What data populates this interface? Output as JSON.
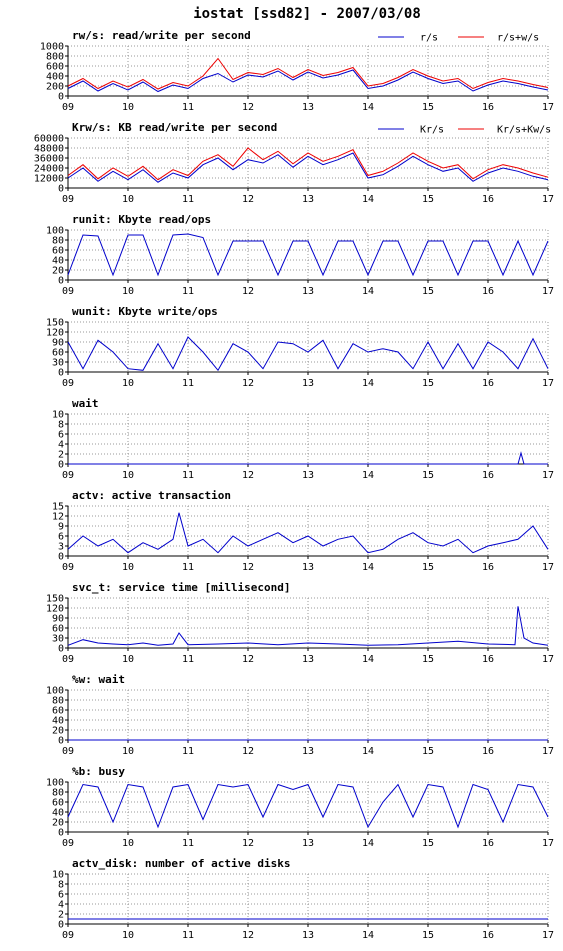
{
  "title": "iostat [ssd82] - 2007/03/08",
  "colors": {
    "primary": "#0000cc",
    "secondary": "#ee0000",
    "grid": "#999999",
    "axis": "#000000"
  },
  "x_ticks": [
    "09",
    "10",
    "11",
    "12",
    "13",
    "14",
    "15",
    "16",
    "17"
  ],
  "chart_data": [
    {
      "type": "line",
      "title": "rw/s: read/write per second",
      "yticks": [
        "1000",
        "800",
        "600",
        "400",
        "200",
        "0"
      ],
      "ylim": [
        0,
        1000
      ],
      "xlim": [
        9,
        17
      ],
      "legend": [
        "r/s",
        "r/s+w/s"
      ],
      "series": [
        {
          "name": "r/s",
          "x": [
            9.0,
            9.25,
            9.5,
            9.75,
            10.0,
            10.25,
            10.5,
            10.75,
            11.0,
            11.25,
            11.5,
            11.75,
            12.0,
            12.25,
            12.5,
            12.75,
            13.0,
            13.25,
            13.5,
            13.75,
            14.0,
            14.25,
            14.5,
            14.75,
            15.0,
            15.25,
            15.5,
            15.75,
            16.0,
            16.25,
            16.5,
            16.75,
            17.0
          ],
          "y": [
            150,
            300,
            100,
            250,
            120,
            280,
            90,
            220,
            150,
            350,
            450,
            280,
            420,
            380,
            500,
            320,
            480,
            360,
            420,
            520,
            150,
            200,
            320,
            480,
            350,
            250,
            300,
            100,
            220,
            300,
            250,
            180,
            120
          ]
        },
        {
          "name": "r/s+w/s",
          "x": [
            9.0,
            9.25,
            9.5,
            9.75,
            10.0,
            10.25,
            10.5,
            10.75,
            11.0,
            11.25,
            11.5,
            11.75,
            12.0,
            12.25,
            12.5,
            12.75,
            13.0,
            13.25,
            13.5,
            13.75,
            14.0,
            14.25,
            14.5,
            14.75,
            15.0,
            15.25,
            15.5,
            15.75,
            16.0,
            16.25,
            16.5,
            16.75,
            17.0
          ],
          "y": [
            200,
            350,
            150,
            300,
            180,
            330,
            140,
            270,
            200,
            400,
            750,
            330,
            470,
            430,
            550,
            370,
            530,
            410,
            470,
            570,
            200,
            250,
            370,
            530,
            400,
            300,
            350,
            150,
            270,
            350,
            300,
            230,
            170
          ]
        }
      ]
    },
    {
      "type": "line",
      "title": "Krw/s: KB read/write per second",
      "yticks": [
        "60000",
        "48000",
        "36000",
        "24000",
        "12000",
        "0"
      ],
      "ylim": [
        0,
        60000
      ],
      "xlim": [
        9,
        17
      ],
      "legend": [
        "Kr/s",
        "Kr/s+Kw/s"
      ],
      "series": [
        {
          "name": "Kr/s",
          "x": [
            9.0,
            9.25,
            9.5,
            9.75,
            10.0,
            10.25,
            10.5,
            10.75,
            11.0,
            11.25,
            11.5,
            11.75,
            12.0,
            12.25,
            12.5,
            12.75,
            13.0,
            13.25,
            13.5,
            13.75,
            14.0,
            14.25,
            14.5,
            14.75,
            15.0,
            15.25,
            15.5,
            15.75,
            16.0,
            16.25,
            16.5,
            16.75,
            17.0
          ],
          "y": [
            12000,
            24000,
            8000,
            20000,
            10000,
            22000,
            7000,
            18000,
            12000,
            28000,
            36000,
            22000,
            34000,
            30000,
            40000,
            25000,
            38000,
            28000,
            34000,
            42000,
            12000,
            16000,
            26000,
            38000,
            28000,
            20000,
            24000,
            8000,
            18000,
            24000,
            20000,
            14000,
            10000
          ]
        },
        {
          "name": "Kr/s+Kw/s",
          "x": [
            9.0,
            9.25,
            9.5,
            9.75,
            10.0,
            10.25,
            10.5,
            10.75,
            11.0,
            11.25,
            11.5,
            11.75,
            12.0,
            12.25,
            12.5,
            12.75,
            13.0,
            13.25,
            13.5,
            13.75,
            14.0,
            14.25,
            14.5,
            14.75,
            15.0,
            15.25,
            15.5,
            15.75,
            16.0,
            16.25,
            16.5,
            16.75,
            17.0
          ],
          "y": [
            15000,
            28000,
            11000,
            24000,
            14000,
            26000,
            10000,
            22000,
            15000,
            32000,
            40000,
            26000,
            48000,
            34000,
            44000,
            29000,
            42000,
            32000,
            38000,
            46000,
            15000,
            20000,
            30000,
            42000,
            32000,
            24000,
            28000,
            11000,
            22000,
            28000,
            24000,
            18000,
            13000
          ]
        }
      ]
    },
    {
      "type": "line",
      "title": "runit: Kbyte read/ops",
      "yticks": [
        "100",
        "80",
        "60",
        "40",
        "20",
        "0"
      ],
      "ylim": [
        0,
        100
      ],
      "xlim": [
        9,
        17
      ],
      "series": [
        {
          "x": [
            9.0,
            9.25,
            9.5,
            9.75,
            10.0,
            10.25,
            10.5,
            10.75,
            11.0,
            11.25,
            11.5,
            11.75,
            12.0,
            12.25,
            12.5,
            12.75,
            13.0,
            13.25,
            13.5,
            13.75,
            14.0,
            14.25,
            14.5,
            14.75,
            15.0,
            15.25,
            15.5,
            15.75,
            16.0,
            16.25,
            16.5,
            16.75,
            17.0
          ],
          "y": [
            10,
            90,
            88,
            10,
            90,
            90,
            10,
            90,
            92,
            85,
            10,
            78,
            78,
            78,
            10,
            78,
            78,
            10,
            78,
            78,
            10,
            78,
            78,
            10,
            78,
            78,
            10,
            78,
            78,
            10,
            78,
            10,
            78
          ]
        }
      ]
    },
    {
      "type": "line",
      "title": "wunit: Kbyte write/ops",
      "yticks": [
        "150",
        "120",
        "90",
        "60",
        "30",
        "0"
      ],
      "ylim": [
        0,
        150
      ],
      "xlim": [
        9,
        17
      ],
      "series": [
        {
          "x": [
            9.0,
            9.25,
            9.5,
            9.75,
            10.0,
            10.25,
            10.5,
            10.75,
            11.0,
            11.25,
            11.5,
            11.75,
            12.0,
            12.25,
            12.5,
            12.75,
            13.0,
            13.25,
            13.5,
            13.75,
            14.0,
            14.25,
            14.5,
            14.75,
            15.0,
            15.25,
            15.5,
            15.75,
            16.0,
            16.25,
            16.5,
            16.75,
            17.0
          ],
          "y": [
            90,
            10,
            95,
            60,
            10,
            5,
            85,
            10,
            105,
            60,
            5,
            85,
            60,
            10,
            90,
            85,
            60,
            95,
            10,
            85,
            60,
            70,
            60,
            10,
            90,
            10,
            85,
            10,
            90,
            60,
            10,
            100,
            10
          ]
        }
      ]
    },
    {
      "type": "line",
      "title": "wait",
      "yticks": [
        "10",
        "8",
        "6",
        "4",
        "2",
        "0"
      ],
      "ylim": [
        0,
        10
      ],
      "xlim": [
        9,
        17
      ],
      "series": [
        {
          "x": [
            9.0,
            10.0,
            11.0,
            12.0,
            13.0,
            14.0,
            15.0,
            16.0,
            16.5,
            16.55,
            16.6,
            17.0
          ],
          "y": [
            0,
            0,
            0,
            0,
            0,
            0,
            0,
            0,
            0,
            2.2,
            0,
            0
          ]
        }
      ]
    },
    {
      "type": "line",
      "title": "actv: active transaction",
      "yticks": [
        "15",
        "12",
        "9",
        "6",
        "3",
        "0"
      ],
      "ylim": [
        0,
        15
      ],
      "xlim": [
        9,
        17
      ],
      "series": [
        {
          "x": [
            9.0,
            9.25,
            9.5,
            9.75,
            10.0,
            10.25,
            10.5,
            10.75,
            10.85,
            11.0,
            11.25,
            11.5,
            11.75,
            12.0,
            12.25,
            12.5,
            12.75,
            13.0,
            13.25,
            13.5,
            13.75,
            14.0,
            14.25,
            14.5,
            14.75,
            15.0,
            15.25,
            15.5,
            15.75,
            16.0,
            16.25,
            16.5,
            16.75,
            17.0
          ],
          "y": [
            2,
            6,
            3,
            5,
            1,
            4,
            2,
            5,
            13,
            3,
            5,
            1,
            6,
            3,
            5,
            7,
            4,
            6,
            3,
            5,
            6,
            1,
            2,
            5,
            7,
            4,
            3,
            5,
            1,
            3,
            4,
            5,
            9,
            2
          ]
        }
      ]
    },
    {
      "type": "line",
      "title": "svc_t: service time [millisecond]",
      "yticks": [
        "150",
        "120",
        "90",
        "60",
        "30",
        "0"
      ],
      "ylim": [
        0,
        150
      ],
      "xlim": [
        9,
        17
      ],
      "series": [
        {
          "x": [
            9.0,
            9.25,
            9.5,
            9.75,
            10.0,
            10.25,
            10.5,
            10.75,
            10.85,
            11.0,
            11.5,
            12.0,
            12.5,
            13.0,
            13.5,
            14.0,
            14.5,
            15.0,
            15.5,
            16.0,
            16.45,
            16.5,
            16.6,
            16.75,
            17.0
          ],
          "y": [
            8,
            25,
            15,
            12,
            10,
            15,
            8,
            12,
            45,
            10,
            12,
            15,
            10,
            15,
            12,
            8,
            10,
            15,
            20,
            12,
            10,
            125,
            30,
            15,
            8
          ]
        }
      ]
    },
    {
      "type": "line",
      "title": "%w: wait",
      "yticks": [
        "100",
        "80",
        "60",
        "40",
        "20",
        "0"
      ],
      "ylim": [
        0,
        100
      ],
      "xlim": [
        9,
        17
      ],
      "series": [
        {
          "x": [
            9.0,
            17.0
          ],
          "y": [
            0,
            0
          ]
        }
      ]
    },
    {
      "type": "line",
      "title": "%b: busy",
      "yticks": [
        "100",
        "80",
        "60",
        "40",
        "20",
        "0"
      ],
      "ylim": [
        0,
        100
      ],
      "xlim": [
        9,
        17
      ],
      "series": [
        {
          "x": [
            9.0,
            9.25,
            9.5,
            9.75,
            10.0,
            10.25,
            10.5,
            10.75,
            11.0,
            11.25,
            11.5,
            11.75,
            12.0,
            12.25,
            12.5,
            12.75,
            13.0,
            13.25,
            13.5,
            13.75,
            14.0,
            14.25,
            14.5,
            14.75,
            15.0,
            15.25,
            15.5,
            15.75,
            16.0,
            16.25,
            16.5,
            16.75,
            17.0
          ],
          "y": [
            30,
            95,
            90,
            20,
            95,
            90,
            10,
            90,
            95,
            25,
            95,
            90,
            95,
            30,
            95,
            85,
            95,
            30,
            95,
            90,
            10,
            60,
            95,
            30,
            95,
            90,
            10,
            95,
            85,
            20,
            95,
            90,
            30
          ]
        }
      ]
    },
    {
      "type": "line",
      "title": "actv_disk: number of active disks",
      "yticks": [
        "10",
        "8",
        "6",
        "4",
        "2",
        "0"
      ],
      "ylim": [
        0,
        10
      ],
      "xlim": [
        9,
        17
      ],
      "series": [
        {
          "x": [
            9.0,
            17.0
          ],
          "y": [
            1,
            1
          ]
        }
      ]
    }
  ]
}
